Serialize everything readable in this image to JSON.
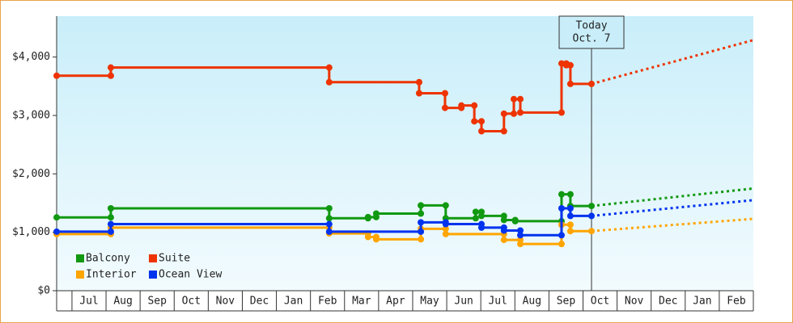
{
  "chart_data": {
    "type": "step-line",
    "xlim": [
      -0.45,
      20
    ],
    "ylim": [
      0,
      4700
    ],
    "yticks": [
      {
        "value": 0,
        "label": "$0"
      },
      {
        "value": 1000,
        "label": "$1,000"
      },
      {
        "value": 2000,
        "label": "$2,000"
      },
      {
        "value": 3000,
        "label": "$3,000"
      },
      {
        "value": 4000,
        "label": "$4,000"
      }
    ],
    "xticks": [
      {
        "value": 0.5,
        "label": "Jul"
      },
      {
        "value": 1.5,
        "label": "Aug"
      },
      {
        "value": 2.5,
        "label": "Sep"
      },
      {
        "value": 3.5,
        "label": "Oct"
      },
      {
        "value": 4.5,
        "label": "Nov"
      },
      {
        "value": 5.5,
        "label": "Dec"
      },
      {
        "value": 6.5,
        "label": "Jan"
      },
      {
        "value": 7.5,
        "label": "Feb"
      },
      {
        "value": 8.5,
        "label": "Mar"
      },
      {
        "value": 9.5,
        "label": "Apr"
      },
      {
        "value": 10.5,
        "label": "May"
      },
      {
        "value": 11.5,
        "label": "Jun"
      },
      {
        "value": 12.5,
        "label": "Jul"
      },
      {
        "value": 13.5,
        "label": "Aug"
      },
      {
        "value": 14.5,
        "label": "Sep"
      },
      {
        "value": 15.5,
        "label": "Oct"
      },
      {
        "value": 16.5,
        "label": "Nov"
      },
      {
        "value": 17.5,
        "label": "Dec"
      },
      {
        "value": 18.5,
        "label": "Jan"
      },
      {
        "value": 19.5,
        "label": "Feb"
      }
    ],
    "legend": "lower left",
    "annotation": {
      "x": 15.25,
      "lines": [
        "Today",
        "Oct. 7"
      ]
    },
    "series": [
      {
        "name": "Balcony",
        "color": "#119911",
        "x": [
          -0.45,
          1.14,
          1.14,
          7.55,
          7.55,
          8.69,
          8.69,
          8.93,
          8.93,
          10.24,
          10.24,
          10.97,
          10.97,
          11.85,
          11.85,
          12.02,
          12.02,
          12.68,
          12.68,
          13.01,
          13.01,
          14.37,
          14.37,
          14.63,
          14.63,
          15.25
        ],
        "values": [
          1255,
          1255,
          1410,
          1410,
          1240,
          1240,
          1260,
          1260,
          1320,
          1320,
          1460,
          1460,
          1240,
          1240,
          1350,
          1350,
          1280,
          1280,
          1210,
          1210,
          1190,
          1190,
          1650,
          1650,
          1450,
          1450
        ],
        "forecast": {
          "x": [
            15.25,
            20
          ],
          "values": [
            1450,
            1750
          ]
        }
      },
      {
        "name": "Suite",
        "color": "#ee3300",
        "x": [
          -0.45,
          1.14,
          1.14,
          7.55,
          7.55,
          10.19,
          10.19,
          10.95,
          10.95,
          11.43,
          11.43,
          11.81,
          11.81,
          12.02,
          12.02,
          12.68,
          12.68,
          12.97,
          12.97,
          13.16,
          13.16,
          14.37,
          14.37,
          14.51,
          14.51,
          14.63,
          14.63,
          15.25
        ],
        "values": [
          3680,
          3680,
          3820,
          3820,
          3570,
          3570,
          3380,
          3380,
          3130,
          3130,
          3170,
          3170,
          2900,
          2900,
          2730,
          2730,
          3030,
          3030,
          3280,
          3280,
          3050,
          3050,
          3890,
          3890,
          3860,
          3860,
          3540,
          3540
        ],
        "forecast": {
          "x": [
            15.25,
            20
          ],
          "values": [
            3540,
            4290
          ]
        }
      },
      {
        "name": "Interior",
        "color": "#ffa500",
        "x": [
          -0.45,
          1.14,
          1.14,
          7.55,
          7.55,
          8.69,
          8.69,
          8.93,
          8.93,
          10.24,
          10.24,
          10.97,
          10.97,
          12.68,
          12.68,
          13.16,
          13.16,
          14.37,
          14.37,
          14.63,
          14.63,
          15.25
        ],
        "values": [
          970,
          970,
          1080,
          1080,
          980,
          980,
          920,
          920,
          880,
          880,
          1060,
          1060,
          970,
          970,
          870,
          870,
          800,
          800,
          1130,
          1130,
          1020,
          1020
        ],
        "forecast": {
          "x": [
            15.25,
            20
          ],
          "values": [
            1020,
            1230
          ]
        }
      },
      {
        "name": "Ocean View",
        "color": "#0033ee",
        "x": [
          -0.45,
          1.14,
          1.14,
          7.55,
          7.55,
          10.24,
          10.24,
          10.97,
          10.97,
          12.02,
          12.02,
          12.68,
          12.68,
          13.16,
          13.16,
          14.37,
          14.37,
          14.63,
          14.63,
          15.25
        ],
        "values": [
          1010,
          1010,
          1140,
          1140,
          1010,
          1010,
          1170,
          1170,
          1140,
          1140,
          1080,
          1080,
          1030,
          1030,
          950,
          950,
          1410,
          1410,
          1280,
          1280
        ],
        "forecast": {
          "x": [
            15.25,
            20
          ],
          "values": [
            1280,
            1550
          ]
        }
      }
    ]
  }
}
